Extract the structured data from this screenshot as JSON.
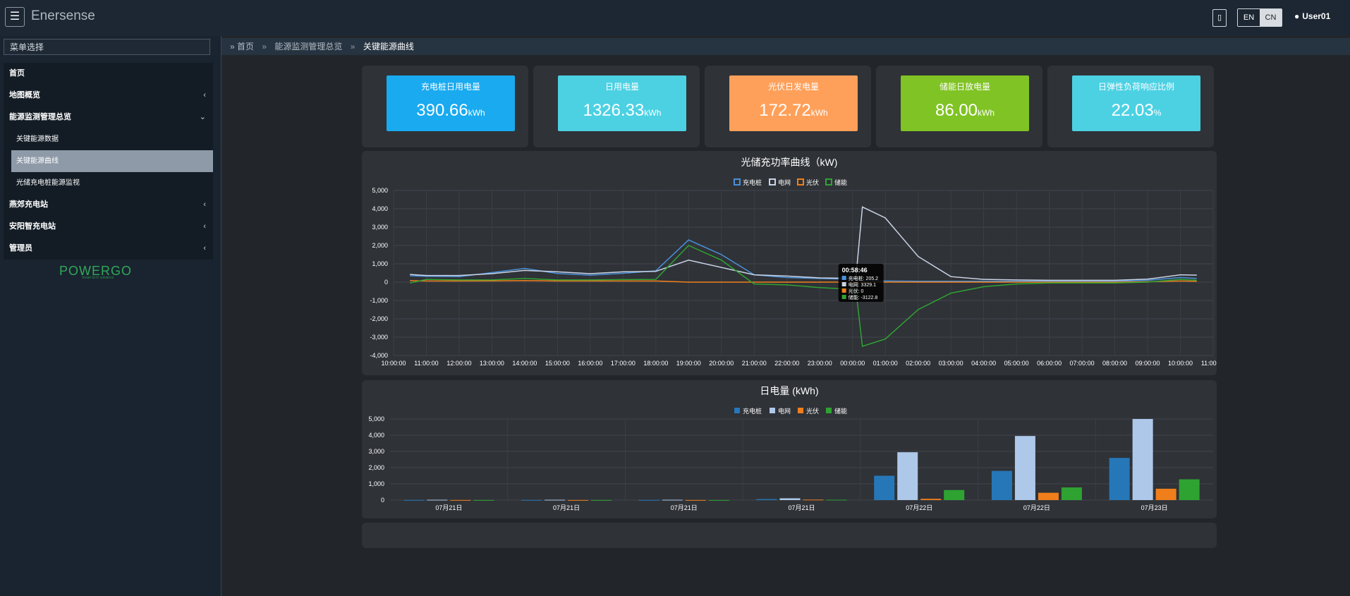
{
  "app": {
    "brand": "Enersense",
    "menu_icon": "hamburger-icon"
  },
  "header": {
    "mobile_icon": "mobile-icon",
    "lang_en": "EN",
    "lang_cn": "CN",
    "user": "User01",
    "user_icon": "user-icon"
  },
  "sidebar": {
    "search_label": "菜单选择",
    "items": [
      {
        "label": "首页",
        "chevron": ""
      },
      {
        "label": "地图概览",
        "chevron": "‹"
      },
      {
        "label": "能源监测管理总览",
        "chevron": "⌄"
      },
      {
        "label": "关键能源数据",
        "chevron": ""
      },
      {
        "label": "关键能源曲线",
        "chevron": ""
      },
      {
        "label": "光储充电桩能源监视",
        "chevron": ""
      },
      {
        "label": "燕郊充电站",
        "chevron": "‹"
      },
      {
        "label": "安阳智充电站",
        "chevron": "‹"
      },
      {
        "label": "管理员",
        "chevron": "‹"
      }
    ],
    "logo_text": "POWERGO",
    "logo_tag": "Smart EnV solutions"
  },
  "breadcrumb": {
    "home": "首页",
    "parent": "能源监测管理总览",
    "current": "关键能源曲线",
    "sep": "»"
  },
  "kpis": [
    {
      "label": "充电桩日用电量",
      "value": "390.66",
      "unit": "kWh",
      "color": "#19aaf0"
    },
    {
      "label": "日用电量",
      "value": "1326.33",
      "unit": "kWh",
      "color": "#4cd1e3"
    },
    {
      "label": "光伏日发电量",
      "value": "172.72",
      "unit": "kWh",
      "color": "#ffa05a"
    },
    {
      "label": "储能日放电量",
      "value": "86.00",
      "unit": "kWh",
      "color": "#80c324"
    },
    {
      "label": "日弹性负荷响应比例",
      "value": "22.03",
      "unit": "%",
      "color": "#4cd1e3"
    }
  ],
  "chart_data": [
    {
      "type": "line",
      "title": "光储充功率曲线（kW)",
      "series": [
        {
          "name": "充电桩",
          "color": "#4a90d9"
        },
        {
          "name": "电网",
          "color": "#c9d4e6"
        },
        {
          "name": "光伏",
          "color": "#f07f1b"
        },
        {
          "name": "储能",
          "color": "#2fa332"
        }
      ],
      "x": [
        "10:00:00",
        "11:00:00",
        "12:00:00",
        "13:00:00",
        "14:00:00",
        "15:00:00",
        "16:00:00",
        "17:00:00",
        "18:00:00",
        "19:00:00",
        "20:00:00",
        "21:00:00",
        "22:00:00",
        "23:00:00",
        "00:00:00",
        "01:00:00",
        "02:00:00",
        "03:00:00",
        "04:00:00",
        "05:00:00",
        "06:00:00",
        "07:00:00",
        "08:00:00",
        "09:00:00",
        "10:00:00",
        "11:00:00"
      ],
      "yticks": [
        "5,000",
        "4,000",
        "3,000",
        "2,000",
        "1,000",
        "0",
        "-1,000",
        "-2,000",
        "-3,000",
        "-4,000"
      ],
      "ylim": [
        -4000,
        5000
      ],
      "data": {
        "hours": [
          10.5,
          11,
          12,
          13,
          14,
          15,
          16,
          17,
          18,
          19,
          20,
          21,
          22,
          23,
          24.1,
          24.3,
          25,
          26,
          27,
          28,
          29,
          30,
          31,
          32,
          33,
          34,
          34.5
        ],
        "充电桩": [
          350,
          320,
          300,
          520,
          750,
          470,
          380,
          480,
          620,
          2300,
          1500,
          400,
          250,
          200,
          150,
          80,
          60,
          50,
          50,
          50,
          50,
          50,
          50,
          50,
          100,
          250,
          200
        ],
        "电网": [
          420,
          360,
          360,
          460,
          640,
          560,
          460,
          560,
          590,
          1200,
          800,
          400,
          330,
          230,
          205,
          4100,
          3500,
          1400,
          300,
          150,
          120,
          100,
          100,
          100,
          160,
          400,
          380
        ],
        "光伏": [
          80,
          60,
          60,
          70,
          90,
          60,
          60,
          60,
          60,
          0,
          0,
          0,
          0,
          0,
          0,
          0,
          0,
          0,
          0,
          0,
          0,
          0,
          0,
          0,
          20,
          60,
          50
        ],
        "储能": [
          -50,
          150,
          120,
          120,
          200,
          120,
          120,
          140,
          150,
          2000,
          1200,
          -100,
          -150,
          -300,
          -400,
          -3500,
          -3100,
          -1500,
          -600,
          -250,
          -100,
          -50,
          -50,
          -50,
          0,
          150,
          100
        ]
      },
      "tooltip": {
        "time": "00:58:46",
        "rows": [
          "充电桩: 205.2",
          "电网: 3329.1",
          "光伏: 0",
          "储能: -3122.8"
        ]
      }
    },
    {
      "type": "bar",
      "title": "日电量 (kWh)",
      "categories": [
        "07月21日",
        "07月21日",
        "07月21日",
        "07月21日",
        "07月22日",
        "07月22日",
        "07月23日"
      ],
      "series": [
        {
          "name": "充电桩",
          "color": "#2677b8",
          "values": [
            10,
            10,
            10,
            60,
            1500,
            1800,
            2600
          ]
        },
        {
          "name": "电网",
          "color": "#aec8e9",
          "values": [
            20,
            20,
            20,
            110,
            2950,
            3950,
            5000
          ]
        },
        {
          "name": "光伏",
          "color": "#f07f1b",
          "values": [
            5,
            5,
            5,
            30,
            80,
            450,
            700
          ]
        },
        {
          "name": "储能",
          "color": "#2fa332",
          "values": [
            5,
            5,
            5,
            20,
            620,
            780,
            1280
          ]
        }
      ],
      "yticks": [
        "5,000",
        "4,000",
        "3,000",
        "2,000",
        "1,000",
        "0"
      ],
      "ylim": [
        0,
        5000
      ]
    }
  ]
}
